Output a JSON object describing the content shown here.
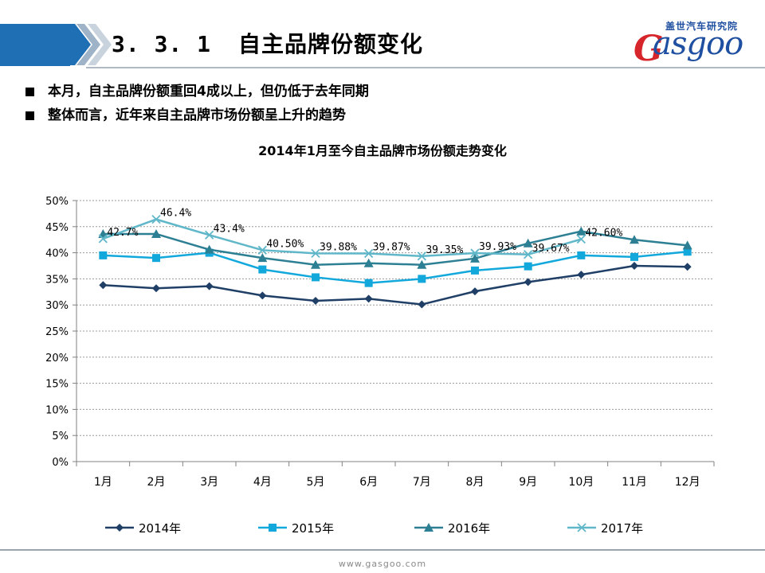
{
  "slide": {
    "section_number": "3. 3. 1",
    "section_title": "自主品牌份额变化",
    "footer_url": "www.gasgoo.com"
  },
  "brand": {
    "cn_name": "盖世汽车研究院",
    "logo_text": "asgoo",
    "logo_letter": "G"
  },
  "bullets": [
    "本月，自主品牌份额重回4成以上，但仍低于去年同期",
    "整体而言，近年来自主品牌市场份额呈上升的趋势"
  ],
  "chart_data": {
    "type": "line",
    "title": "2014年1月至今自主品牌市场份额走势变化",
    "categories": [
      "1月",
      "2月",
      "3月",
      "4月",
      "5月",
      "6月",
      "7月",
      "8月",
      "9月",
      "10月",
      "11月",
      "12月"
    ],
    "y_ticks": [
      "0%",
      "5%",
      "10%",
      "15%",
      "20%",
      "25%",
      "30%",
      "35%",
      "40%",
      "45%",
      "50%"
    ],
    "ylim": [
      0,
      50
    ],
    "grid": true,
    "legend_position": "bottom",
    "series": [
      {
        "name": "2014年",
        "color": "#1f3f66",
        "marker": "diamond",
        "values": [
          33.8,
          33.2,
          33.6,
          31.8,
          30.8,
          31.2,
          30.1,
          32.6,
          34.4,
          35.8,
          37.5,
          37.3
        ]
      },
      {
        "name": "2015年",
        "color": "#12a8dc",
        "marker": "square",
        "values": [
          39.5,
          39.0,
          40.0,
          36.8,
          35.3,
          34.2,
          35.0,
          36.6,
          37.4,
          39.5,
          39.2,
          40.2
        ]
      },
      {
        "name": "2016年",
        "color": "#2d7f93",
        "marker": "triangle",
        "values": [
          43.6,
          43.6,
          40.6,
          39.0,
          37.7,
          38.0,
          37.7,
          38.9,
          41.8,
          44.1,
          42.5,
          41.4
        ]
      },
      {
        "name": "2017年",
        "color": "#5fb7c9",
        "marker": "x",
        "values": [
          42.7,
          46.4,
          43.4,
          40.5,
          39.88,
          39.87,
          39.35,
          39.93,
          39.67,
          42.6,
          null,
          null
        ]
      }
    ],
    "data_labels": [
      "42.7%",
      "46.4%",
      "43.4%",
      "40.50%",
      "39.88%",
      "39.87%",
      "39.35%",
      "39.93%",
      "39.67%",
      "42.60%"
    ]
  }
}
